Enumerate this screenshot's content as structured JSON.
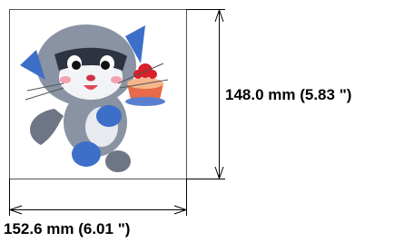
{
  "dimensions": {
    "width_label": "152.6 mm (6.01 \")",
    "height_label": "148.0 mm (5.83 \")"
  }
}
